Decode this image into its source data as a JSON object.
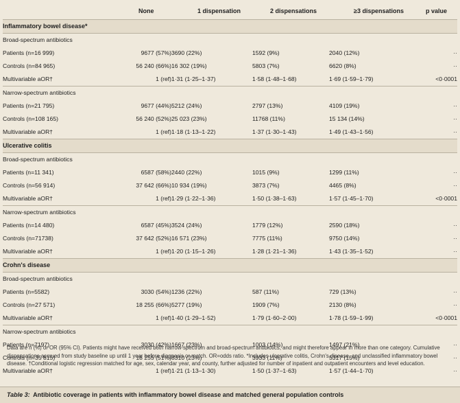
{
  "table": {
    "headers": [
      "",
      "None",
      "1 dispensation",
      "2 dispensations",
      "≥3 dispensations",
      "p value"
    ],
    "sections": [
      {
        "title": "Inflammatory bowel disease*",
        "groups": [
          {
            "title": "Broad-spectrum antibiotics",
            "rows": [
              {
                "label": "Patients (n=16 999)",
                "none": "9677 (57%)",
                "d1": "3690 (22%)",
                "d2": "1592 (9%)",
                "d3": "2040 (12%)",
                "p": "··"
              },
              {
                "label": "Controls (n=84 965)",
                "none": "56 240 (66%)",
                "d1": "16 302 (19%)",
                "d2": "5803 (7%)",
                "d3": "6620 (8%)",
                "p": "··"
              },
              {
                "label": "Multivariable aOR†",
                "none": "1 (ref)",
                "d1": "1·31 (1·25–1·37)",
                "d2": "1·58 (1·48–1·68)",
                "d3": "1·69 (1·59–1·79)",
                "p": "<0·0001"
              }
            ]
          },
          {
            "title": "Narrow-spectrum antibiotics",
            "rows": [
              {
                "label": "Patients (n=21 795)",
                "none": "9677 (44%)",
                "d1": "5212 (24%)",
                "d2": "2797 (13%)",
                "d3": "4109 (19%)",
                "p": "··"
              },
              {
                "label": "Controls (n=108 165)",
                "none": "56 240 (52%)",
                "d1": "25 023 (23%)",
                "d2": "11768 (11%)",
                "d3": "15 134 (14%)",
                "p": "··"
              },
              {
                "label": "Multivariable aOR†",
                "none": "1 (ref)",
                "d1": "1·18 (1·13–1·22)",
                "d2": "1·37 (1·30–1·43)",
                "d3": "1·49 (1·43–1·56)",
                "p": "··"
              }
            ]
          }
        ]
      },
      {
        "title": "Ulcerative colitis",
        "groups": [
          {
            "title": "Broad-spectrum antibiotics",
            "rows": [
              {
                "label": "Patients (n=11 341)",
                "none": "6587 (58%)",
                "d1": "2440 (22%)",
                "d2": "1015 (9%)",
                "d3": "1299 (11%)",
                "p": "··"
              },
              {
                "label": "Controls (n=56 914)",
                "none": "37 642 (66%)",
                "d1": "10 934 (19%)",
                "d2": "3873 (7%)",
                "d3": "4465 (8%)",
                "p": "··"
              },
              {
                "label": "Multivariable aOR†",
                "none": "1 (ref)",
                "d1": "1·29 (1·22–1·36)",
                "d2": "1·50 (1·38–1·63)",
                "d3": "1·57 (1·45–1·70)",
                "p": "<0·0001"
              }
            ]
          },
          {
            "title": "Narrow-spectrum antibiotics",
            "rows": [
              {
                "label": "Patients (n=14 480)",
                "none": "6587 (45%)",
                "d1": "3524 (24%)",
                "d2": "1779 (12%)",
                "d3": "2590 (18%)",
                "p": "··"
              },
              {
                "label": "Controls (n=71738)",
                "none": "37 642 (52%)",
                "d1": "16 571 (23%)",
                "d2": "7775 (11%)",
                "d3": "9750 (14%)",
                "p": "··"
              },
              {
                "label": "Multivariable aOR†",
                "none": "1 (ref)",
                "d1": "1·20 (1·15–1·26)",
                "d2": "1·28 (1·21–1·36)",
                "d3": "1·43 (1·35–1·52)",
                "p": "··"
              }
            ]
          }
        ]
      },
      {
        "title": "Crohn's disease",
        "groups": [
          {
            "title": "Broad-spectrum antibiotics",
            "rows": [
              {
                "label": "Patients (n=5582)",
                "none": "3030 (54%)",
                "d1": "1236 (22%)",
                "d2": "587 (11%)",
                "d3": "729 (13%)",
                "p": "··"
              },
              {
                "label": "Controls (n=27 571)",
                "none": "18 255 (66%)",
                "d1": "5277 (19%)",
                "d2": "1909 (7%)",
                "d3": "2130 (8%)",
                "p": "··"
              },
              {
                "label": "Multivariable aOR†",
                "none": "1 (ref)",
                "d1": "1·40 (1·29–1·52)",
                "d2": "1·79 (1·60–2·00)",
                "d3": "1·78 (1·59–1·99)",
                "p": "<0·0001"
              }
            ]
          },
          {
            "title": "Narrow-spectrum antibiotics",
            "rows": [
              {
                "label": "Patients (n=7197)",
                "none": "3030 (42%)",
                "d1": "1667 (23%)",
                "d2": "1003 (14%)",
                "d3": "1497 (21%)",
                "p": "··"
              },
              {
                "label": "Controls (n=35 815)",
                "none": "18 255 (51%)",
                "d1": "8310 (23%)",
                "d2": "3933 (11%)",
                "d3": "5317 (15%)",
                "p": "··"
              },
              {
                "label": "Multivariable aOR†",
                "none": "1 (ref)",
                "d1": "1·21 (1·13–1·30)",
                "d2": "1·50 (1·37–1·63)",
                "d3": "1·57 (1·44–1·70)",
                "p": "··"
              }
            ]
          }
        ]
      }
    ]
  },
  "footnote": "Data are n (%) or OR (95% CI). Patients might have  received both narrow-spectrum and broad-spectrum antibiotics, and might therefore appear in more than one category. Cumulative dispensations accrued from study baseline up until 1 year before diagnosis or match. OR=odds ratio. *Includes ulcerative colitis, Crohn's disease, and unclassified inflammatory bowel disease. †Conditional logistic regression matched for age, sex, calendar year, and county, further adjusted for number of inpatient and outpatient encounters and level education.",
  "caption": {
    "label": "Table 3:",
    "text": "Antibiotic coverage in patients with inflammatory bowel disease and matched general population controls"
  }
}
